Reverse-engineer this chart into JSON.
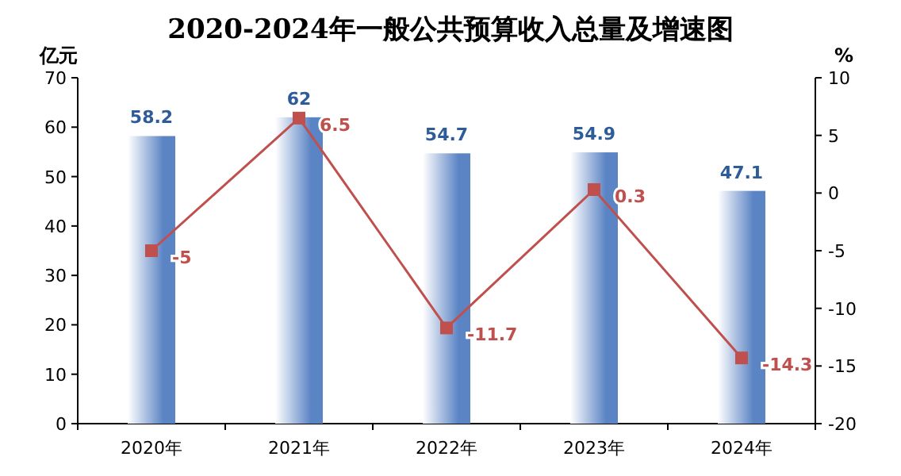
{
  "chart_data": {
    "type": "bar",
    "title": "2020-2024年一般公共预算收入总量及增速图",
    "ylabel": "亿元",
    "y2label": "%",
    "categories": [
      "2020年",
      "2021年",
      "2022年",
      "2023年",
      "2024年"
    ],
    "series": [
      {
        "color": "#5b84c4",
        "values": [
          58.2,
          62,
          54.7,
          54.9,
          47.1
        ]
      },
      {
        "type": "line",
        "axis": "y2",
        "color": "#c0504d",
        "values": [
          -5,
          6.5,
          -11.7,
          0.3,
          -14.3
        ]
      }
    ],
    "ylim": [
      0,
      70
    ],
    "yticks": [
      0,
      10,
      20,
      30,
      40,
      50,
      60,
      70
    ],
    "y2lim": [
      -20,
      10
    ],
    "y2ticks": [
      -20,
      -15,
      -10,
      -5,
      0,
      5,
      10
    ],
    "data_labels": true,
    "grid": false,
    "marker": "square",
    "line_style": "solid"
  }
}
